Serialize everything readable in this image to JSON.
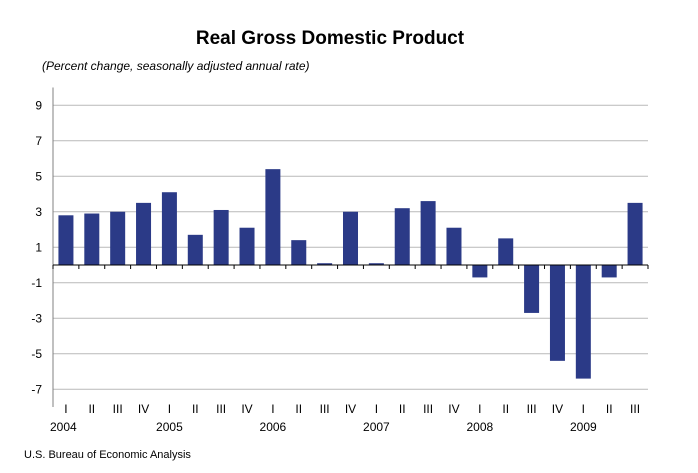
{
  "chart_data": {
    "type": "bar",
    "title": "Real Gross Domestic Product",
    "subtitle": "(Percent change, seasonally adjusted annual rate)",
    "xlabel": "",
    "ylabel": "",
    "ylim": [
      -8,
      10
    ],
    "yticks": [
      9,
      7,
      5,
      3,
      1,
      -1,
      -3,
      -5,
      -7
    ],
    "grid": true,
    "bar_color": "#2B3A87",
    "categories": [
      "I",
      "II",
      "III",
      "IV",
      "I",
      "II",
      "III",
      "IV",
      "I",
      "II",
      "III",
      "IV",
      "I",
      "II",
      "III",
      "IV",
      "I",
      "II",
      "III",
      "IV",
      "I",
      "II",
      "III"
    ],
    "years": [
      {
        "label": "2004",
        "start_index": 0
      },
      {
        "label": "2005",
        "start_index": 4
      },
      {
        "label": "2006",
        "start_index": 8
      },
      {
        "label": "2007",
        "start_index": 12
      },
      {
        "label": "2008",
        "start_index": 16
      },
      {
        "label": "2009",
        "start_index": 20
      }
    ],
    "values": [
      2.8,
      2.9,
      3.0,
      3.5,
      4.1,
      1.7,
      3.1,
      2.1,
      5.4,
      1.4,
      0.1,
      3.0,
      0.1,
      3.2,
      3.6,
      2.1,
      -0.7,
      1.5,
      -2.7,
      -5.4,
      -6.4,
      -0.7,
      3.5
    ]
  },
  "source": "U.S. Bureau of Economic Analysis"
}
